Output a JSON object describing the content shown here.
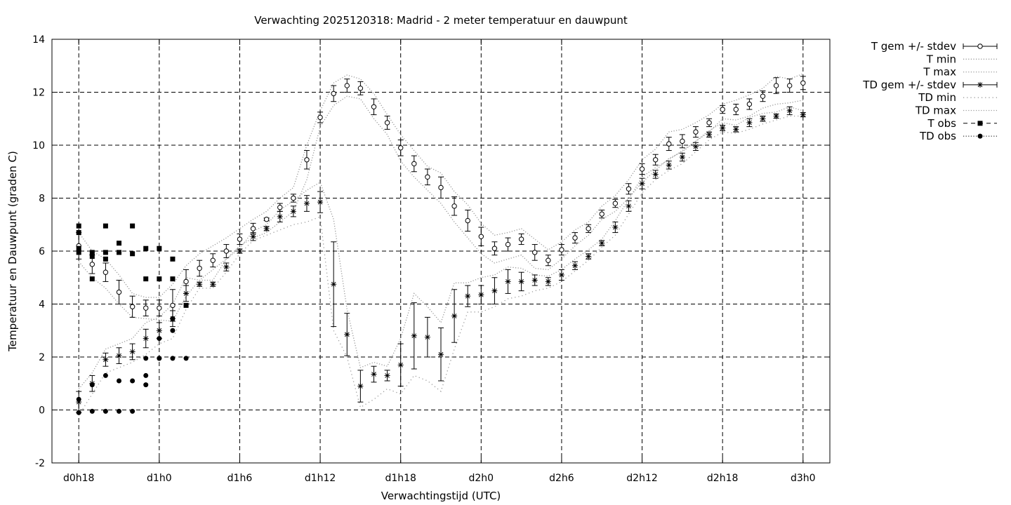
{
  "chart_data": {
    "type": "line",
    "title": "Verwachting 2025120318: Madrid - 2 meter temperatuur en dauwpunt",
    "xlabel": "Verwachtingstijd (UTC)",
    "ylabel": "Temperatuur en Dauwpunt (graden C)",
    "x_tick_labels": [
      "d0h18",
      "d1h0",
      "d1h6",
      "d1h12",
      "d1h18",
      "d2h0",
      "d2h6",
      "d2h12",
      "d2h18",
      "d3h0"
    ],
    "x_tick_values": [
      0,
      6,
      12,
      18,
      24,
      30,
      36,
      42,
      48,
      54
    ],
    "xlim": [
      -2,
      56
    ],
    "ylim": [
      -2,
      14
    ],
    "y_ticks": [
      -2,
      0,
      2,
      4,
      6,
      8,
      10,
      12,
      14
    ],
    "grid": true,
    "legend_placement": "outside-top-right",
    "legend": [
      {
        "label": "T gem +/- stdev",
        "style": "errorbar-circle"
      },
      {
        "label": "T min",
        "style": "dotted"
      },
      {
        "label": "T max",
        "style": "dotted"
      },
      {
        "label": "TD gem +/- stdev",
        "style": "errorbar-star"
      },
      {
        "label": "TD min",
        "style": "dotted-sparse"
      },
      {
        "label": "TD max",
        "style": "dotted"
      },
      {
        "label": "T obs",
        "style": "dashed-square"
      },
      {
        "label": "TD obs",
        "style": "dotted-circle"
      }
    ],
    "hours": [
      0,
      1,
      2,
      3,
      4,
      5,
      6,
      7,
      8,
      9,
      10,
      11,
      12,
      13,
      14,
      15,
      16,
      17,
      18,
      19,
      20,
      21,
      22,
      23,
      24,
      25,
      26,
      27,
      28,
      29,
      30,
      31,
      32,
      33,
      34,
      35,
      36,
      37,
      38,
      39,
      40,
      41,
      42,
      43,
      44,
      45,
      46,
      47,
      48,
      49,
      50,
      51,
      52,
      53,
      54
    ],
    "series": [
      {
        "name": "T gem +/- stdev",
        "values": [
          6.2,
          5.5,
          5.2,
          4.45,
          3.9,
          3.85,
          3.85,
          3.95,
          4.85,
          5.35,
          5.65,
          6.0,
          6.45,
          6.85,
          7.2,
          7.65,
          8.0,
          9.45,
          11.05,
          11.95,
          12.25,
          12.15,
          11.45,
          10.85,
          9.9,
          9.3,
          8.8,
          8.4,
          7.7,
          7.15,
          6.55,
          6.1,
          6.25,
          6.45,
          5.95,
          5.65,
          6.05,
          6.5,
          6.85,
          7.4,
          7.8,
          8.35,
          9.1,
          9.45,
          10.05,
          10.15,
          10.5,
          10.85,
          11.35,
          11.35,
          11.55,
          11.85,
          12.25,
          12.25,
          12.35
        ],
        "stdev": [
          0.5,
          0.35,
          0.35,
          0.45,
          0.4,
          0.3,
          0.3,
          0.6,
          0.45,
          0.3,
          0.25,
          0.25,
          0.2,
          0.2,
          0.05,
          0.15,
          0.15,
          0.35,
          0.2,
          0.3,
          0.25,
          0.25,
          0.3,
          0.25,
          0.3,
          0.3,
          0.3,
          0.4,
          0.35,
          0.4,
          0.35,
          0.25,
          0.25,
          0.2,
          0.3,
          0.2,
          0.2,
          0.2,
          0.15,
          0.15,
          0.15,
          0.2,
          0.2,
          0.2,
          0.25,
          0.25,
          0.2,
          0.15,
          0.15,
          0.2,
          0.2,
          0.2,
          0.3,
          0.25,
          0.25
        ]
      },
      {
        "name": "T min",
        "values": [
          5.6,
          5.0,
          4.6,
          4.0,
          3.5,
          3.45,
          3.4,
          3.35,
          4.3,
          4.9,
          5.3,
          5.7,
          6.2,
          6.5,
          6.7,
          7.1,
          7.5,
          8.7,
          10.7,
          11.5,
          11.85,
          11.75,
          11.0,
          10.4,
          9.4,
          8.8,
          8.3,
          7.8,
          7.1,
          6.5,
          5.9,
          5.55,
          5.7,
          5.85,
          5.35,
          5.3,
          5.7,
          6.2,
          6.6,
          7.2,
          7.5,
          8.0,
          8.6,
          9.05,
          9.5,
          9.75,
          10.15,
          10.5,
          11.0,
          10.95,
          11.1,
          11.4,
          11.55,
          11.6,
          11.7
        ]
      },
      {
        "name": "T max",
        "values": [
          6.7,
          6.0,
          5.7,
          5.1,
          4.4,
          4.25,
          4.25,
          4.75,
          5.45,
          5.9,
          6.2,
          6.5,
          6.85,
          7.2,
          7.5,
          8.0,
          8.4,
          10.0,
          11.3,
          12.35,
          12.65,
          12.5,
          11.95,
          11.15,
          10.4,
          9.8,
          9.2,
          8.95,
          8.25,
          7.75,
          7.05,
          6.6,
          6.7,
          6.85,
          6.45,
          6.05,
          6.35,
          6.8,
          7.1,
          7.7,
          8.1,
          8.7,
          9.45,
          9.85,
          10.5,
          10.6,
          10.85,
          11.15,
          11.55,
          11.7,
          11.9,
          12.15,
          12.6,
          12.5,
          12.7
        ]
      },
      {
        "name": "TD gem +/- stdev",
        "values": [
          0.3,
          1.0,
          1.9,
          2.05,
          2.2,
          2.7,
          3.0,
          3.45,
          4.4,
          4.75,
          4.75,
          5.4,
          6.0,
          6.55,
          6.85,
          7.3,
          7.5,
          7.8,
          7.85,
          4.75,
          2.85,
          0.9,
          1.35,
          1.3,
          1.7,
          2.8,
          2.75,
          2.1,
          3.55,
          4.3,
          4.35,
          4.5,
          4.85,
          4.85,
          4.9,
          4.85,
          5.1,
          5.45,
          5.8,
          6.3,
          6.9,
          7.7,
          8.55,
          8.9,
          9.25,
          9.55,
          9.95,
          10.4,
          10.65,
          10.6,
          10.85,
          11.0,
          11.1,
          11.3,
          11.15
        ],
        "stdev": [
          0.4,
          0.3,
          0.25,
          0.3,
          0.3,
          0.35,
          0.3,
          0.3,
          0.3,
          0.08,
          0.08,
          0.15,
          0.08,
          0.15,
          0.08,
          0.2,
          0.2,
          0.3,
          0.4,
          1.6,
          0.8,
          0.6,
          0.3,
          0.2,
          0.8,
          1.25,
          0.75,
          1.0,
          1.0,
          0.4,
          0.35,
          0.5,
          0.45,
          0.35,
          0.2,
          0.15,
          0.2,
          0.15,
          0.1,
          0.1,
          0.2,
          0.2,
          0.2,
          0.15,
          0.15,
          0.15,
          0.15,
          0.1,
          0.1,
          0.1,
          0.15,
          0.1,
          0.08,
          0.15,
          0.08
        ]
      },
      {
        "name": "TD min",
        "values": [
          -0.2,
          0.6,
          1.4,
          1.6,
          1.8,
          2.1,
          2.5,
          2.7,
          3.8,
          4.6,
          4.6,
          5.2,
          5.9,
          6.4,
          6.6,
          6.8,
          7.0,
          7.1,
          7.3,
          3.0,
          2.0,
          0.1,
          0.4,
          0.8,
          0.6,
          1.3,
          1.1,
          0.7,
          2.3,
          3.7,
          3.7,
          3.9,
          4.2,
          4.3,
          4.5,
          4.6,
          4.85,
          5.25,
          5.65,
          6.15,
          6.6,
          7.4,
          8.2,
          8.7,
          9.05,
          9.3,
          9.75,
          10.2,
          10.5,
          10.45,
          10.6,
          10.8,
          10.95,
          11.1,
          11.1
        ]
      },
      {
        "name": "TD max",
        "values": [
          0.8,
          1.4,
          2.3,
          2.5,
          2.7,
          3.3,
          3.5,
          4.0,
          5.0,
          4.9,
          4.9,
          5.7,
          6.1,
          6.75,
          7.0,
          7.55,
          7.9,
          8.3,
          8.6,
          7.2,
          3.8,
          1.6,
          1.8,
          1.65,
          2.7,
          4.4,
          3.9,
          3.3,
          4.8,
          4.8,
          5.0,
          5.1,
          5.4,
          5.35,
          5.1,
          5.05,
          5.3,
          5.7,
          6.05,
          6.45,
          7.15,
          7.95,
          8.8,
          9.15,
          9.45,
          9.8,
          10.15,
          10.55,
          10.85,
          10.75,
          11.05,
          11.2,
          11.25,
          11.45,
          11.3
        ]
      },
      {
        "name": "T obs",
        "x": [
          0,
          0,
          0,
          0,
          1,
          1,
          1,
          2,
          2,
          2,
          3,
          3,
          4,
          4,
          5,
          5,
          6,
          6,
          7,
          7,
          8
        ],
        "values": [
          5.95,
          6.1,
          6.7,
          6.95,
          4.95,
          5.8,
          5.95,
          5.7,
          5.95,
          6.95,
          5.95,
          6.3,
          5.9,
          6.95,
          4.95,
          6.1,
          4.95,
          6.1,
          4.95,
          5.7,
          3.95
        ]
      },
      {
        "name": "TD obs",
        "x": [
          0,
          0,
          1,
          1,
          2,
          2,
          3,
          3,
          4,
          4,
          5,
          5,
          5,
          6,
          6,
          6,
          7,
          7,
          7,
          8
        ],
        "values": [
          -0.1,
          0.4,
          -0.05,
          0.95,
          -0.05,
          1.3,
          -0.05,
          1.1,
          -0.05,
          1.1,
          0.95,
          1.3,
          1.95,
          1.95,
          2.7,
          1.95,
          1.95,
          3.0,
          3.45,
          1.95
        ]
      }
    ]
  }
}
